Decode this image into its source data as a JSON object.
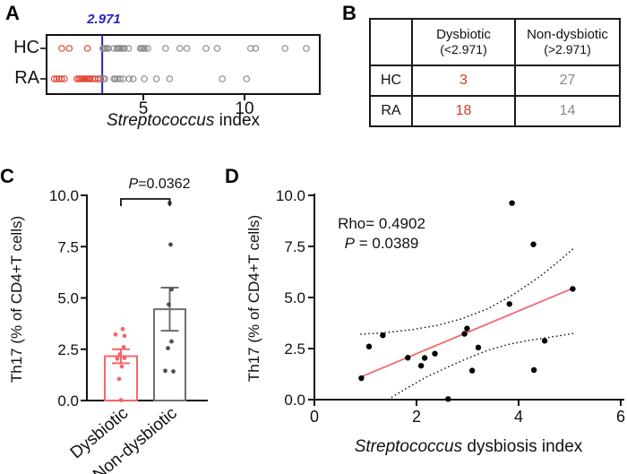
{
  "panel_labels": {
    "a": "A",
    "b": "B",
    "c": "C",
    "d": "D"
  },
  "colors": {
    "dysbiotic_red": "#df4332",
    "salmon": "#f2686c",
    "gray_point": "#8a8a8a",
    "gray_bar": "#6f6f6f",
    "cutoff_blue": "#2424c4",
    "black": "#111111"
  },
  "chart_data": [
    {
      "type": "strip",
      "panel": "A",
      "xlabel_italic": "Streptococcus",
      "xlabel_rest": " index",
      "xticks": [
        5,
        10
      ],
      "xlim": [
        0.2,
        13.7
      ],
      "cutoff": {
        "value": 2.971,
        "label": "2.971",
        "color": "#2424c4"
      },
      "colors": {
        "dysbiotic": "#df4332",
        "non_dysbiotic": "#8a8a8a"
      },
      "rows": [
        {
          "label": "HC",
          "dysbiotic": [
            0.97,
            1.34,
            2.24
          ],
          "non_dysbiotic": [
            3.0,
            3.05,
            3.12,
            3.2,
            3.28,
            3.55,
            3.7,
            3.76,
            3.84,
            3.92,
            4.0,
            4.07,
            4.27,
            4.85,
            4.92,
            5.0,
            5.08,
            5.22,
            6.1,
            6.8,
            7.15,
            8.1,
            8.65,
            10.3,
            10.55,
            12.0,
            13.05
          ]
        },
        {
          "label": "RA",
          "dysbiotic": [
            0.6,
            0.72,
            0.84,
            0.96,
            1.1,
            1.72,
            1.82,
            1.9,
            1.98,
            2.06,
            2.14,
            2.22,
            2.3,
            2.38,
            2.5,
            2.62,
            2.78,
            2.9
          ],
          "non_dysbiotic": [
            3.02,
            3.1,
            3.55,
            3.62,
            3.72,
            3.85,
            4.0,
            4.3,
            4.5,
            5.05,
            5.65,
            6.3,
            8.9,
            10.1
          ]
        }
      ]
    },
    {
      "type": "table",
      "panel": "B",
      "col_headers": [
        [
          "Dysbiotic",
          "(<2.971)"
        ],
        [
          "Non-dysbiotic",
          "(>2.971)"
        ]
      ],
      "rows": [
        [
          "HC",
          "3",
          "27"
        ],
        [
          "RA",
          "18",
          "14"
        ]
      ],
      "value_colors": {
        "dysbiotic": "#d6392b",
        "non_dysbiotic": "#8a8a8a"
      }
    },
    {
      "type": "bar",
      "panel": "C",
      "ylabel": "Th17 (% of CD4+T cells)",
      "yticks": [
        "0.0",
        "2.5",
        "5.0",
        "7.5",
        "10.0"
      ],
      "ylim": [
        0,
        10
      ],
      "significance": {
        "p_italic": "P",
        "p_rest": "=0.0362"
      },
      "bars": [
        {
          "label": "Dysbiotic",
          "mean": 2.16,
          "sem": 0.34,
          "color": "#f2686c",
          "point_color": "#f2686c",
          "points": [
            [
              3.48,
              2
            ],
            [
              3.22,
              -6
            ],
            [
              3.15,
              4
            ],
            [
              2.6,
              3
            ],
            [
              2.25,
              -1
            ],
            [
              2.07,
              4
            ],
            [
              2.04,
              -4
            ],
            [
              1.66,
              1
            ],
            [
              1.05,
              -2
            ],
            [
              0.02,
              0
            ]
          ]
        },
        {
          "label": "Non-dysbiotic",
          "mean": 4.45,
          "sem": 1.05,
          "color": "#6f6f6f",
          "point_color": "#4f4f4f",
          "points": [
            [
              9.62,
              0
            ],
            [
              7.6,
              1
            ],
            [
              5.42,
              2
            ],
            [
              4.68,
              -1
            ],
            [
              2.88,
              2
            ],
            [
              2.55,
              -2
            ],
            [
              1.45,
              -5
            ],
            [
              1.42,
              4
            ]
          ]
        }
      ]
    },
    {
      "type": "scatter",
      "panel": "D",
      "xlabel_italic": "Streptococcus",
      "xlabel_rest": " dysbiosis index",
      "ylabel": "Th17 (% of CD4+T cells)",
      "xlim": [
        0,
        6
      ],
      "xticks": [
        0,
        2,
        4,
        6
      ],
      "ylim": [
        0,
        10
      ],
      "yticks": [
        "0.0",
        "2.5",
        "5.0",
        "7.5",
        "10.0"
      ],
      "stats": {
        "rho_line": "Rho= 0.4902",
        "p_italic": "P",
        "p_rest": " = 0.0389"
      },
      "points": [
        [
          0.92,
          1.05
        ],
        [
          1.07,
          2.6
        ],
        [
          1.34,
          3.15
        ],
        [
          1.83,
          2.05
        ],
        [
          2.09,
          1.66
        ],
        [
          2.16,
          2.04
        ],
        [
          2.36,
          2.25
        ],
        [
          2.62,
          0.03
        ],
        [
          2.94,
          3.22
        ],
        [
          2.99,
          3.48
        ],
        [
          3.09,
          1.42
        ],
        [
          3.21,
          2.55
        ],
        [
          3.82,
          4.68
        ],
        [
          3.87,
          9.62
        ],
        [
          4.29,
          7.6
        ],
        [
          4.3,
          1.45
        ],
        [
          4.51,
          2.88
        ],
        [
          5.06,
          5.42
        ]
      ],
      "regression": {
        "x1": 0.95,
        "y1": 1.15,
        "x2": 5.06,
        "y2": 5.45,
        "color": "#f2686c"
      },
      "ci_upper": [
        [
          0.9,
          3.2
        ],
        [
          1.4,
          3.28
        ],
        [
          1.9,
          3.42
        ],
        [
          2.4,
          3.63
        ],
        [
          2.9,
          3.97
        ],
        [
          3.4,
          4.45
        ],
        [
          3.9,
          5.15
        ],
        [
          4.4,
          6.0
        ],
        [
          4.75,
          6.7
        ],
        [
          5.1,
          7.45
        ]
      ],
      "ci_lower": [
        [
          1.44,
          0.0
        ],
        [
          1.8,
          0.55
        ],
        [
          2.2,
          1.12
        ],
        [
          2.6,
          1.58
        ],
        [
          3.0,
          2.02
        ],
        [
          3.4,
          2.42
        ],
        [
          3.8,
          2.7
        ],
        [
          4.2,
          2.9
        ],
        [
          4.6,
          3.05
        ],
        [
          5.1,
          3.25
        ]
      ]
    }
  ]
}
